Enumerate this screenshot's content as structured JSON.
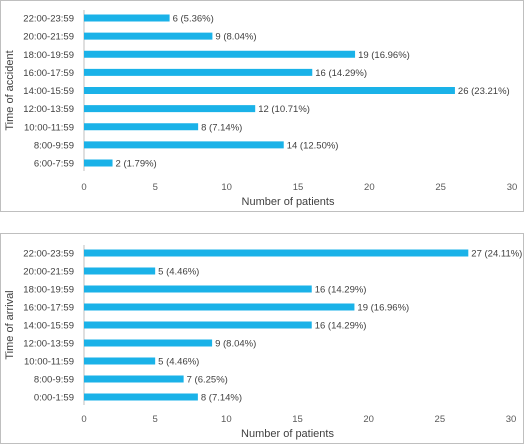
{
  "chart_data": [
    {
      "type": "bar",
      "orientation": "horizontal",
      "categories": [
        "6:00-7:59",
        "8:00-9:59",
        "10:00-11:59",
        "12:00-13:59",
        "14:00-15:59",
        "16:00-17:59",
        "18:00-19:59",
        "20:00-21:59",
        "22:00-23:59"
      ],
      "values": [
        2,
        14,
        8,
        12,
        26,
        16,
        19,
        9,
        6
      ],
      "data_labels": [
        "2 (1.79%)",
        "14 (12.50%)",
        "8 (7.14%)",
        "12 (10.71%)",
        "26 (23.21%)",
        "16 (14.29%)",
        "19 (16.96%)",
        "9 (8.04%)",
        "6 (5.36%)"
      ],
      "xlabel": "Number of patients",
      "ylabel": "Time of accident",
      "xlim": [
        0,
        30
      ],
      "xticks": [
        "0",
        "5",
        "10",
        "15",
        "20",
        "25",
        "30"
      ],
      "grid": false,
      "bar_color": "#1ab2e8"
    },
    {
      "type": "bar",
      "orientation": "horizontal",
      "categories": [
        "0:00-1:59",
        "8:00-9:59",
        "10:00-11:59",
        "12:00-13:59",
        "14:00-15:59",
        "16:00-17:59",
        "18:00-19:59",
        "20:00-21:59",
        "22:00-23:59"
      ],
      "values": [
        8,
        7,
        5,
        9,
        16,
        19,
        16,
        5,
        27
      ],
      "data_labels": [
        "8 (7.14%)",
        "7 (6.25%)",
        "5 (4.46%)",
        "9 (8.04%)",
        "16 (14.29%)",
        "19 (16.96%)",
        "16 (14.29%)",
        "5 (4.46%)",
        "27 (24.11%)"
      ],
      "xlabel": "Number of patients",
      "ylabel": "Time of arrival",
      "xlim": [
        0,
        30
      ],
      "xticks": [
        "0",
        "5",
        "10",
        "15",
        "20",
        "25",
        "30"
      ],
      "grid": false,
      "bar_color": "#1ab2e8"
    }
  ]
}
